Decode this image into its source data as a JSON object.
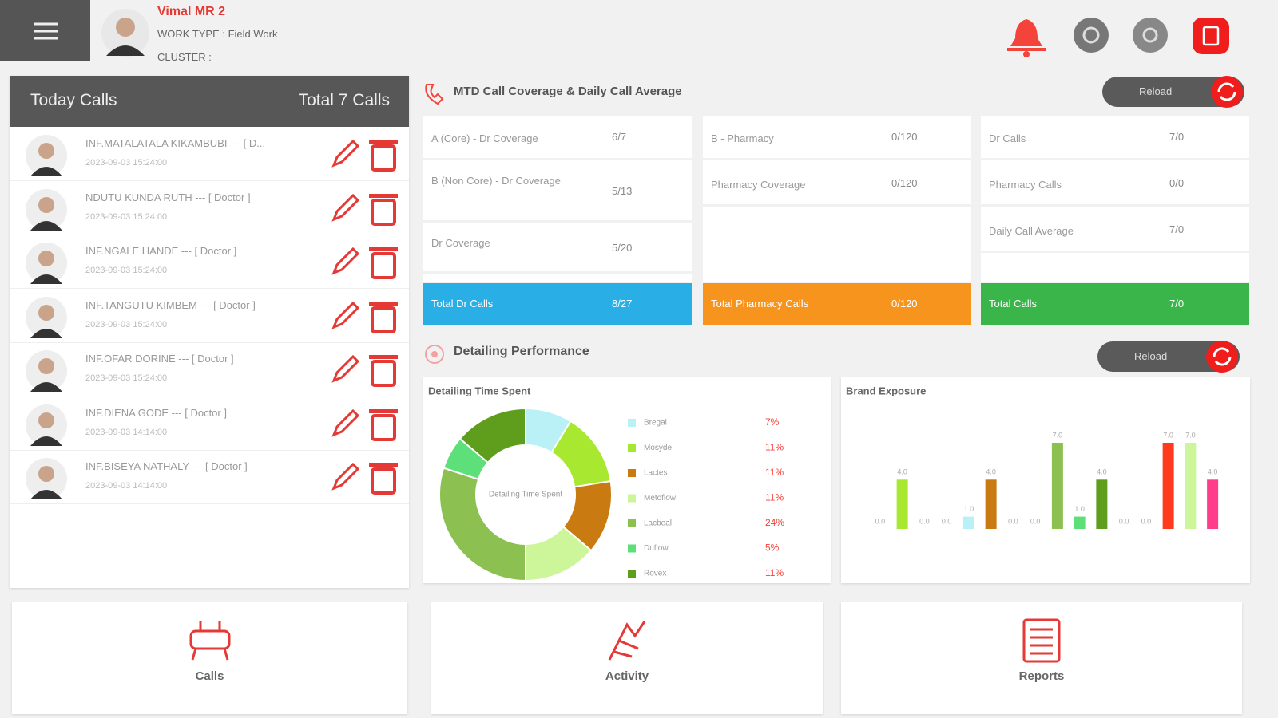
{
  "header": {
    "user_name": "Vimal MR 2",
    "work_type": "WORK TYPE : Field Work",
    "cluster": "CLUSTER :"
  },
  "today_calls": {
    "title": "Today Calls",
    "total": "Total 7 Calls",
    "items": [
      {
        "name": "INF.MATALATALA KIKAMBUBI --- [ D...",
        "time": "2023-09-03 15:24:00"
      },
      {
        "name": "NDUTU KUNDA RUTH --- [ Doctor ]",
        "time": "2023-09-03 15:24:00"
      },
      {
        "name": "INF.NGALE HANDE --- [ Doctor ]",
        "time": "2023-09-03 15:24:00"
      },
      {
        "name": "INF.TANGUTU KIMBEM --- [ Doctor ]",
        "time": "2023-09-03 15:24:00"
      },
      {
        "name": "INF.OFAR DORINE --- [ Doctor ]",
        "time": "2023-09-03 15:24:00"
      },
      {
        "name": "INF.DIENA GODE --- [ Doctor ]",
        "time": "2023-09-03 14:14:00"
      },
      {
        "name": "INF.BISEYA NATHALY --- [ Doctor ]",
        "time": "2023-09-03 14:14:00"
      }
    ]
  },
  "coverage": {
    "title": "MTD Call Coverage & Daily Call Average",
    "reload": "Reload",
    "columns": [
      {
        "rows": [
          {
            "label": "A (Core) - Dr Coverage",
            "value": "6/7"
          },
          {
            "label": "B (Non Core) - Dr Coverage",
            "value": "5/13"
          },
          {
            "label": "Dr Coverage",
            "value": "5/20"
          }
        ],
        "total": {
          "label": "Total Dr Calls",
          "value": "8/27"
        },
        "color": "#2aaee6"
      },
      {
        "rows": [
          {
            "label": "B - Pharmacy",
            "value": "0/120"
          },
          {
            "label": "Pharmacy Coverage",
            "value": "0/120"
          }
        ],
        "total": {
          "label": "Total Pharmacy Calls",
          "value": "0/120"
        },
        "color": "#f7941d"
      },
      {
        "rows": [
          {
            "label": "Dr Calls",
            "value": "7/0"
          },
          {
            "label": "Pharmacy Calls",
            "value": "0/0"
          },
          {
            "label": "Daily Call Average",
            "value": "7/0"
          }
        ],
        "total": {
          "label": "Total Calls",
          "value": "7/0"
        },
        "color": "#3ab54a"
      }
    ]
  },
  "detailing": {
    "title": "Detailing Performance",
    "reload": "Reload"
  },
  "chart_data": [
    {
      "type": "donut",
      "title": "Detailing Time Spent",
      "center_label": "Detailing Time Spent",
      "categories": [
        "Bregal",
        "Mosyde",
        "Lactes",
        "Metoflow",
        "Lacbeal",
        "Duflow",
        "Rovex"
      ],
      "values": [
        7,
        11,
        11,
        11,
        24,
        5,
        11
      ],
      "value_labels": [
        "7%",
        "11%",
        "11%",
        "11%",
        "24%",
        "5%",
        "11%"
      ],
      "colors": [
        "#b9f1f6",
        "#a8e830",
        "#c97a10",
        "#cdf59a",
        "#8cc152",
        "#5de07a",
        "#5e9e1c"
      ]
    },
    {
      "type": "bar",
      "title": "Brand Exposure",
      "categories": [
        null,
        null,
        null,
        null,
        null,
        null,
        null,
        null,
        null,
        null,
        null,
        null,
        null,
        null,
        null,
        null
      ],
      "values": [
        0,
        4,
        0,
        0,
        1,
        4,
        0,
        0,
        7,
        1,
        4,
        0,
        0,
        7,
        7,
        4
      ],
      "value_labels": [
        "0.0",
        "4.0",
        "0.0",
        "0.0",
        "1.0",
        "4.0",
        "0.0",
        "0.0",
        "7.0",
        "1.0",
        "4.0",
        "0.0",
        "0.0",
        "7.0",
        "7.0",
        "4.0"
      ],
      "colors": [
        "#cccccc",
        "#a8e830",
        "#cccccc",
        "#cccccc",
        "#b9f1f6",
        "#c97a10",
        "#cccccc",
        "#cccccc",
        "#8cc152",
        "#5de07a",
        "#5e9e1c",
        "#cccccc",
        "#cccccc",
        "#ff3b1f",
        "#cdf59a",
        "#ff3d8b"
      ],
      "ylim": [
        0,
        7
      ]
    }
  ],
  "tiles": [
    "Calls",
    "Activity",
    "Reports"
  ]
}
